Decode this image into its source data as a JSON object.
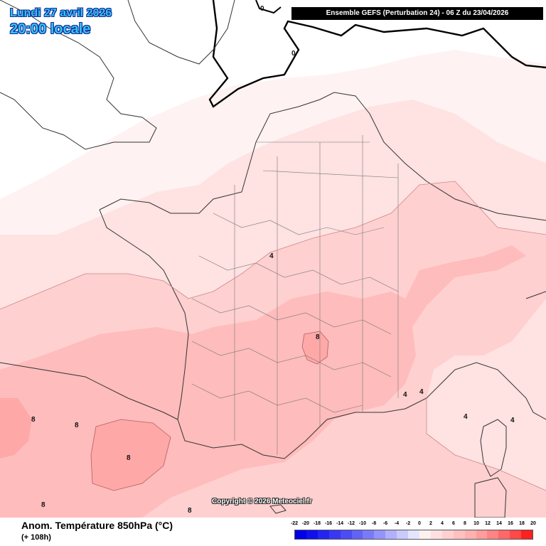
{
  "header": {
    "date": "Lundi 27 avril 2026",
    "time": "20:00 locale",
    "run": "Ensemble GEFS  (Perturbation 24)  -  06 Z du 23/04/2026"
  },
  "copyright": "Copyright © 2026 Meteociel.fr",
  "footer": {
    "parameter": "Anom. Température 850hPa (°C)",
    "lead": "(+ 108h)"
  },
  "legend": {
    "ticks": [
      "-22",
      "-20",
      "-18",
      "-16",
      "-14",
      "-12",
      "-10",
      "-8",
      "-6",
      "-4",
      "-2",
      "0",
      "2",
      "4",
      "6",
      "8",
      "10",
      "12",
      "14",
      "16",
      "18",
      "20"
    ],
    "colors": [
      "#0000e8",
      "#1010ee",
      "#2424f0",
      "#3838f2",
      "#4c4cf4",
      "#6262f6",
      "#7a7af8",
      "#9494fa",
      "#b0b0fc",
      "#cacafd",
      "#e4e4fe",
      "#fff0f0",
      "#ffe0e0",
      "#ffd0d0",
      "#ffc0c0",
      "#ffb0b0",
      "#ff9c9c",
      "#ff8484",
      "#ff6868",
      "#ff4848",
      "#ff2020"
    ]
  },
  "contour_labels": [
    "0",
    "0",
    "4",
    "4",
    "4",
    "4",
    "4",
    "8",
    "8",
    "8",
    "8",
    "8",
    "8"
  ],
  "colors": {
    "zero_contour": "#000000",
    "anomaly_0_2": "#fff0f0",
    "anomaly_2_4": "#ffe0e0",
    "anomaly_4_6": "#ffd0d0",
    "anomaly_6_8": "#ffc0c0",
    "anomaly_8_10": "#ffb0b0",
    "title_text": "#37c0f0"
  }
}
